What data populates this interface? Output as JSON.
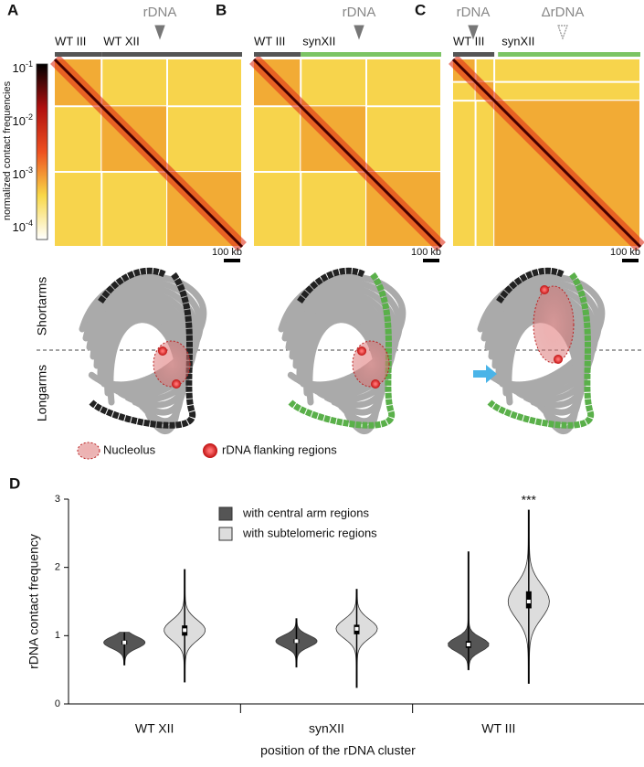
{
  "colorbar": {
    "label": "normalized contact frequencies",
    "ticks": [
      {
        "base": "10",
        "exp": "-1"
      },
      {
        "base": "10",
        "exp": "-2"
      },
      {
        "base": "10",
        "exp": "-3"
      },
      {
        "base": "10",
        "exp": "-4"
      }
    ]
  },
  "panels": [
    {
      "letter": "A",
      "tracks": [
        "WT III",
        "WT XII"
      ],
      "markers": [
        "rDNA"
      ],
      "scale": "100 kb"
    },
    {
      "letter": "B",
      "tracks": [
        "WT III",
        "synXII"
      ],
      "markers": [
        "rDNA"
      ],
      "scale": "100 kb"
    },
    {
      "letter": "C",
      "tracks": [
        "WT III",
        "synXII"
      ],
      "markers": [
        "rDNA",
        "ΔrDNA"
      ],
      "scale": "100 kb"
    }
  ],
  "structures": {
    "short_arms": "Shortarms",
    "long_arms": "Longarms",
    "legend": [
      "Nucleolus",
      "rDNA flanking regions"
    ]
  },
  "chart_data": {
    "type": "violin",
    "panel": "D",
    "y_label": "rDNA contact frequency",
    "x_label": "position of the rDNA cluster",
    "categories": [
      "WT XII",
      "synXII",
      "WT III"
    ],
    "ylim": [
      0,
      3
    ],
    "yticks": [
      0,
      1,
      2,
      3
    ],
    "series": [
      {
        "name": "with central arm regions",
        "color": "#555555",
        "values": [
          {
            "min": 0.57,
            "q1": 0.87,
            "median": 0.9,
            "q3": 0.93,
            "max": 1.05
          },
          {
            "min": 0.54,
            "q1": 0.89,
            "median": 0.92,
            "q3": 0.95,
            "max": 1.25
          },
          {
            "min": 0.5,
            "q1": 0.82,
            "median": 0.87,
            "q3": 0.92,
            "max": 2.23
          }
        ]
      },
      {
        "name": "with subtelomeric regions",
        "color": "#dddddd",
        "values": [
          {
            "min": 0.32,
            "q1": 1.0,
            "median": 1.08,
            "q3": 1.15,
            "max": 1.97
          },
          {
            "min": 0.24,
            "q1": 1.02,
            "median": 1.1,
            "q3": 1.16,
            "max": 1.68
          },
          {
            "min": 0.3,
            "q1": 1.4,
            "median": 1.5,
            "q3": 1.65,
            "max": 2.84
          }
        ]
      }
    ],
    "annotations": [
      {
        "text": "***",
        "category": 2,
        "series": 1
      }
    ]
  }
}
